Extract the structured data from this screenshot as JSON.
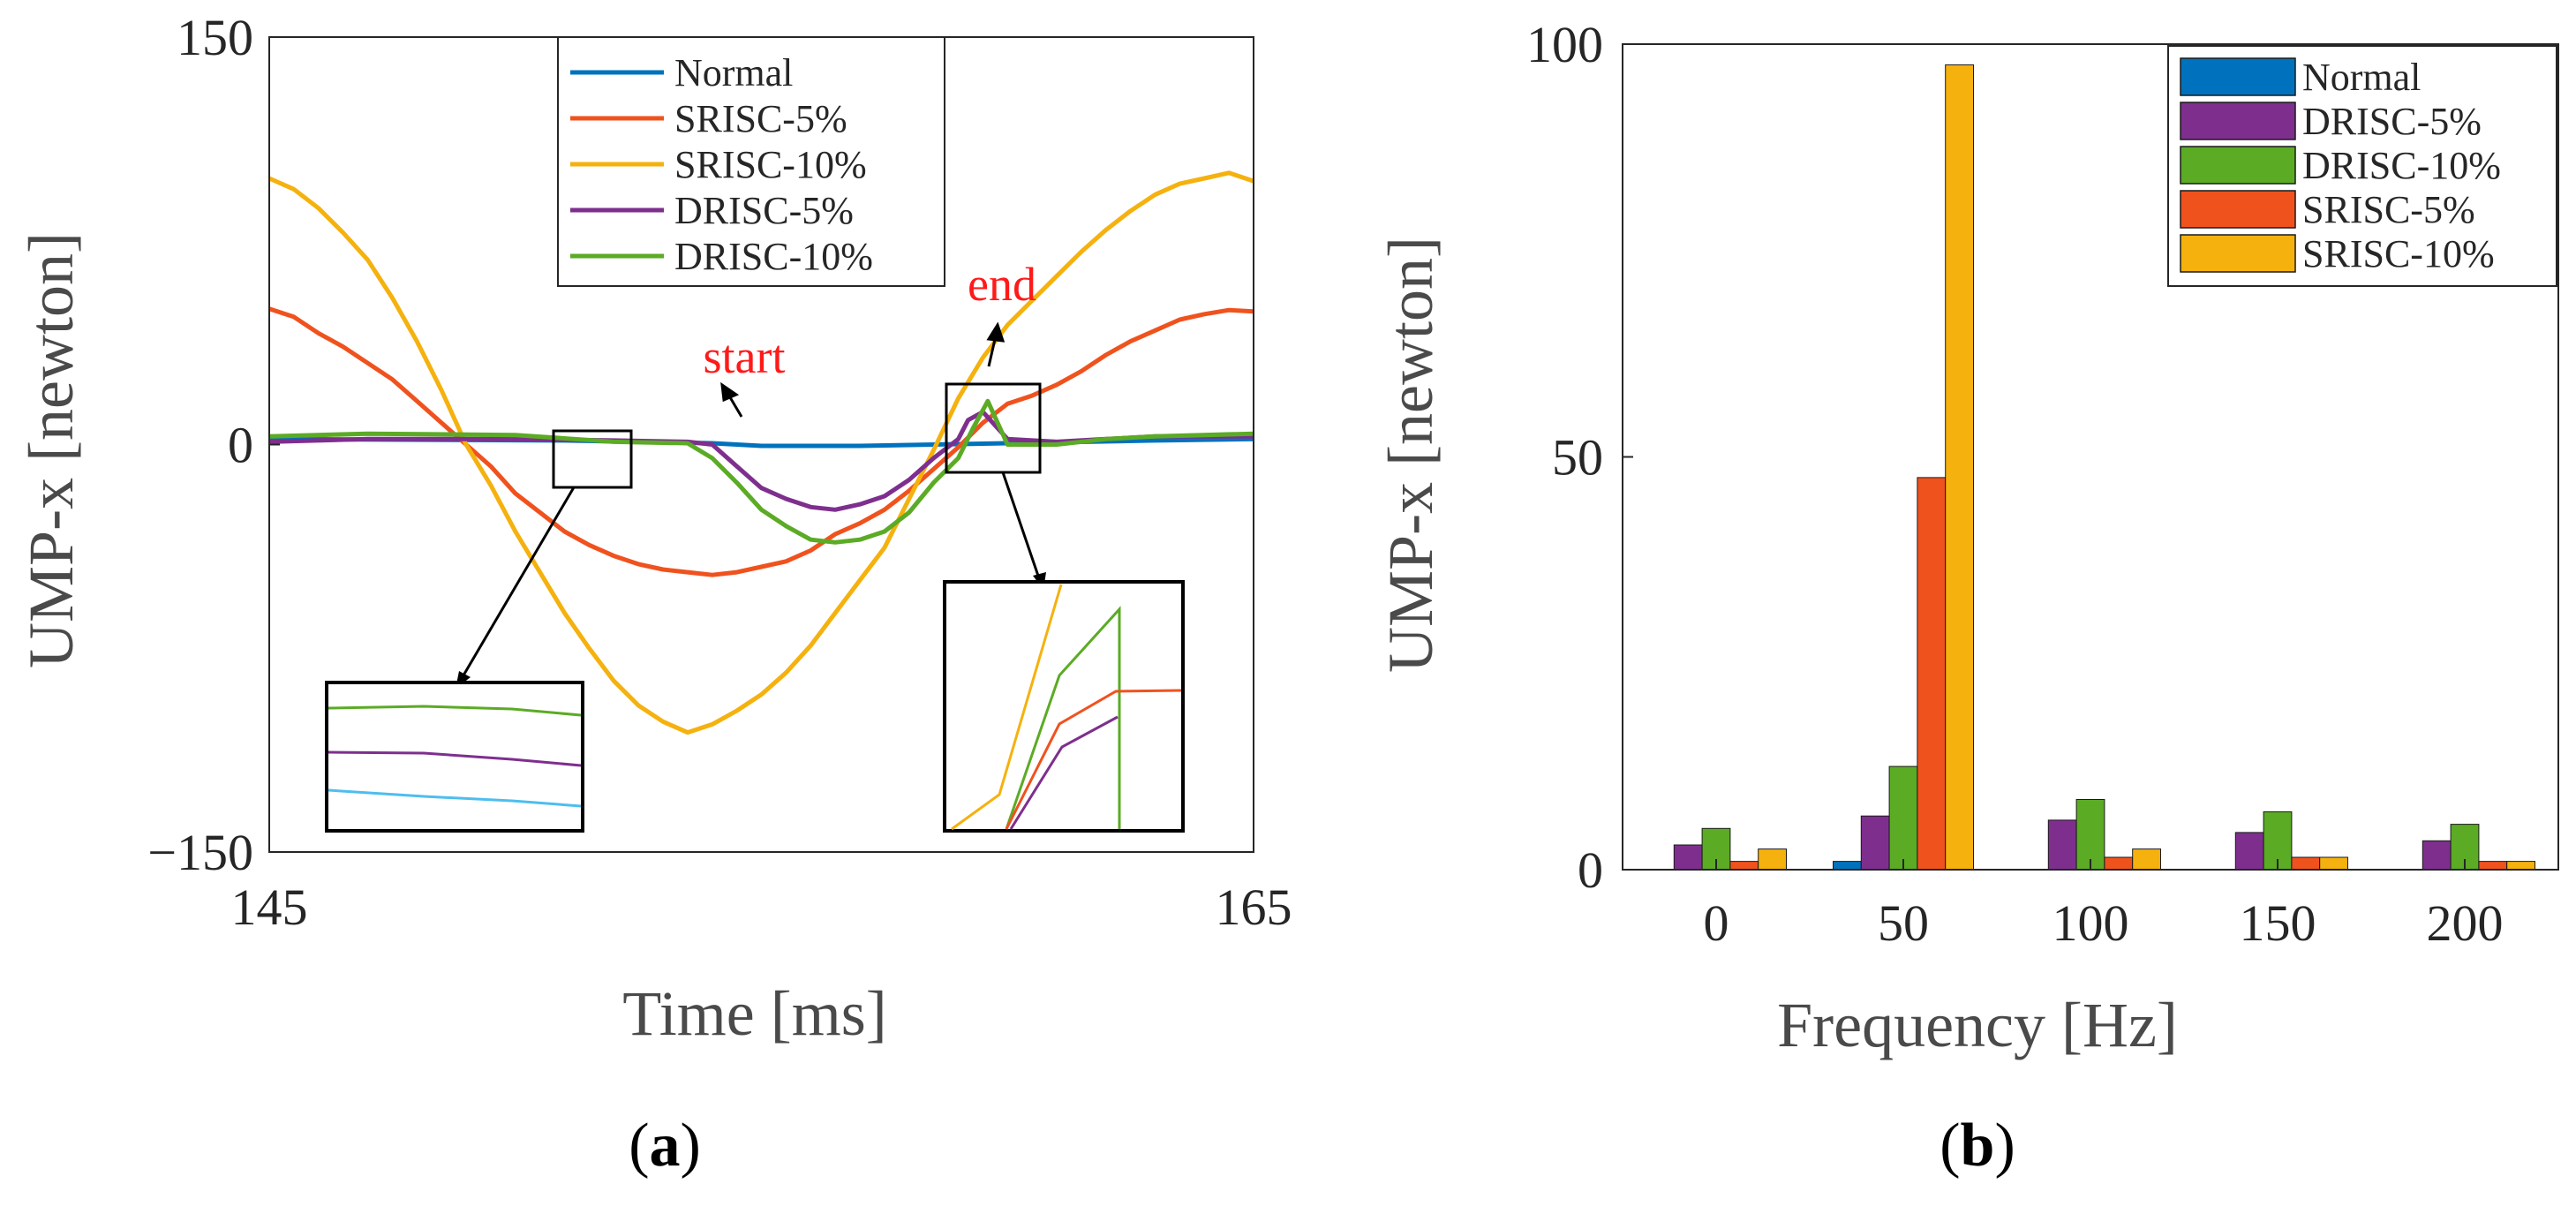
{
  "chart_data": [
    {
      "id": "a",
      "type": "line",
      "panel_label": "(a)",
      "panel_letter": "a",
      "xlabel": "Time [ms]",
      "ylabel": "UMP-x [newton]",
      "xlim": [
        145,
        165
      ],
      "ylim": [
        -150,
        150
      ],
      "xticks": [
        "145",
        "165"
      ],
      "yticks": [
        "150",
        "0",
        "−150"
      ],
      "legend": "top-center",
      "annotations": [
        "start",
        "end"
      ],
      "series": [
        {
          "name": "Normal",
          "color": "#0072BD",
          "x": [
            145,
            151,
            154,
            155,
            157,
            160,
            163,
            165
          ],
          "y": [
            2,
            1.5,
            0.5,
            -0.5,
            -0.5,
            0.5,
            1.5,
            2
          ]
        },
        {
          "name": "SRISC-5%",
          "color": "#F0521E",
          "x": [
            145,
            145.5,
            146,
            146.5,
            147,
            147.5,
            148,
            148.5,
            149,
            149.5,
            150,
            150.5,
            151,
            151.5,
            152,
            152.5,
            153,
            153.5,
            154,
            154.5,
            155,
            155.5,
            156,
            156.5,
            157,
            157.5,
            158,
            158.5,
            159,
            159.5,
            160,
            160.5,
            161,
            161.5,
            162,
            162.5,
            163,
            163.5,
            164,
            164.5,
            165
          ],
          "y": [
            50,
            47,
            41,
            36,
            30,
            24,
            16,
            8,
            0,
            -8,
            -18,
            -25,
            -32,
            -37,
            -41,
            -44,
            -46,
            -47,
            -48,
            -47,
            -45,
            -43,
            -39,
            -33,
            -29,
            -24,
            -17,
            -9,
            -1,
            8,
            15,
            18,
            22,
            27,
            33,
            38,
            42,
            46,
            48,
            49.5,
            49
          ]
        },
        {
          "name": "SRISC-10%",
          "color": "#F5B10E",
          "x": [
            145,
            145.5,
            146,
            146.5,
            147,
            147.5,
            148,
            148.5,
            149,
            149.5,
            150,
            150.5,
            151,
            151.5,
            152,
            152.5,
            153,
            153.5,
            154,
            154.5,
            155,
            155.5,
            156,
            156.5,
            157,
            157.5,
            158,
            158.5,
            159,
            159.5,
            160,
            160.5,
            161,
            161.5,
            162,
            162.5,
            163,
            163.5,
            164,
            164.5,
            165
          ],
          "y": [
            98,
            94,
            87,
            78,
            68,
            54,
            38,
            20,
            0,
            -15,
            -32,
            -47,
            -62,
            -75,
            -87,
            -96,
            -102,
            -106,
            -103,
            -98,
            -92,
            -84,
            -74,
            -62,
            -50,
            -38,
            -20,
            -2,
            17,
            32,
            44,
            53,
            62,
            71,
            79,
            86,
            92,
            96,
            98,
            100,
            97
          ]
        },
        {
          "name": "DRISC-5%",
          "color": "#7E2F8E",
          "x": [
            145,
            147,
            150,
            152,
            153.5,
            154,
            154.5,
            155,
            155.5,
            156,
            156.5,
            157,
            157.5,
            158,
            158.5,
            159,
            159.2,
            159.5,
            160,
            161,
            162,
            163,
            165
          ],
          "y": [
            1,
            2,
            2,
            1.5,
            1,
            0,
            -8,
            -16,
            -20,
            -23,
            -24,
            -22,
            -19,
            -13,
            -5,
            2,
            9,
            12,
            2,
            1,
            2,
            3,
            3
          ]
        },
        {
          "name": "DRISC-10%",
          "color": "#5BAB25",
          "x": [
            145,
            147,
            150,
            152,
            153.5,
            154,
            154.5,
            155,
            155.5,
            156,
            156.5,
            157,
            157.5,
            158,
            158.5,
            159,
            159.3,
            159.6,
            160,
            161,
            162,
            163,
            165
          ],
          "y": [
            3,
            4,
            3.5,
            1,
            0.5,
            -5,
            -14,
            -24,
            -30,
            -35,
            -36,
            -35,
            -32,
            -25,
            -14,
            -5,
            6,
            16,
            0,
            0,
            2,
            3,
            4
          ]
        }
      ]
    },
    {
      "id": "b",
      "type": "bar",
      "panel_label": "(b)",
      "panel_letter": "b",
      "xlabel": "Frequency [Hz]",
      "ylabel": "UMP-x [newton]",
      "ylim": [
        0,
        100
      ],
      "yticks": [
        "0",
        "50",
        "100"
      ],
      "categories": [
        "0",
        "50",
        "100",
        "150",
        "200"
      ],
      "legend": "top-right",
      "series": [
        {
          "name": "Normal",
          "color": "#0072BD",
          "values": [
            0,
            1,
            0,
            0,
            0
          ]
        },
        {
          "name": "DRISC-5%",
          "color": "#7E2F8E",
          "values": [
            3,
            6.5,
            6,
            4.5,
            3.5
          ]
        },
        {
          "name": "DRISC-10%",
          "color": "#5BAB25",
          "values": [
            5,
            12.5,
            8.5,
            7,
            5.5
          ]
        },
        {
          "name": "SRISC-5%",
          "color": "#F0521E",
          "values": [
            1,
            47.5,
            1.5,
            1.5,
            1
          ]
        },
        {
          "name": "SRISC-10%",
          "color": "#F5B10E",
          "values": [
            2.5,
            97.5,
            2.5,
            1.5,
            1
          ]
        }
      ]
    }
  ]
}
